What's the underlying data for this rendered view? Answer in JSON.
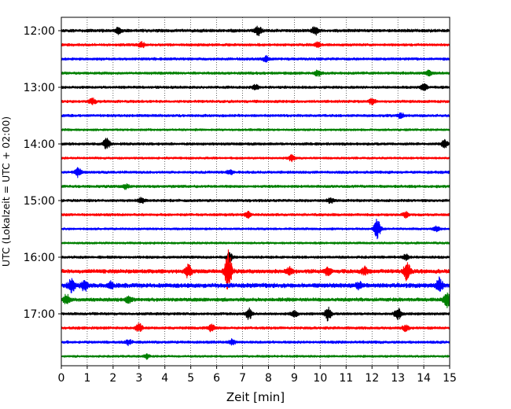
{
  "chart_data": {
    "type": "line",
    "xlabel": "Zeit  [min]",
    "ylabel": "UTC (Lokalzeit = UTC + 02:00)",
    "xlim": [
      0,
      15
    ],
    "x_ticks": [
      0,
      1,
      2,
      3,
      4,
      5,
      6,
      7,
      8,
      9,
      10,
      11,
      12,
      13,
      14,
      15
    ],
    "y_tick_labels": [
      "12:00",
      "13:00",
      "14:00",
      "15:00",
      "16:00",
      "17:00"
    ],
    "grid": "vertical dotted lines at each minute",
    "trace_interval_minutes": 15,
    "color_cycle": [
      "#000000",
      "#ff0000",
      "#0000ff",
      "#008000"
    ],
    "traces": [
      {
        "start": "12:00",
        "color": "#000000",
        "amplitude": 0.7,
        "events": [
          {
            "t": 7.6,
            "a": 2.6
          },
          {
            "t": 9.8,
            "a": 2.2
          },
          {
            "t": 2.2,
            "a": 1.6
          }
        ]
      },
      {
        "start": "12:15",
        "color": "#ff0000",
        "amplitude": 0.6,
        "events": [
          {
            "t": 3.1,
            "a": 1.5
          },
          {
            "t": 9.9,
            "a": 1.4
          }
        ]
      },
      {
        "start": "12:30",
        "color": "#0000ff",
        "amplitude": 0.6,
        "events": [
          {
            "t": 7.9,
            "a": 1.4
          }
        ]
      },
      {
        "start": "12:45",
        "color": "#008000",
        "amplitude": 0.6,
        "events": [
          {
            "t": 9.9,
            "a": 1.5
          },
          {
            "t": 14.2,
            "a": 1.3
          }
        ]
      },
      {
        "start": "13:00",
        "color": "#000000",
        "amplitude": 0.6,
        "events": [
          {
            "t": 14.0,
            "a": 1.6
          },
          {
            "t": 7.5,
            "a": 1.2
          }
        ]
      },
      {
        "start": "13:15",
        "color": "#ff0000",
        "amplitude": 0.6,
        "events": [
          {
            "t": 1.2,
            "a": 1.6
          },
          {
            "t": 12.0,
            "a": 1.5
          }
        ]
      },
      {
        "start": "13:30",
        "color": "#0000ff",
        "amplitude": 0.6,
        "events": [
          {
            "t": 13.1,
            "a": 1.4
          }
        ]
      },
      {
        "start": "13:45",
        "color": "#008000",
        "amplitude": 0.5,
        "events": []
      },
      {
        "start": "14:00",
        "color": "#000000",
        "amplitude": 0.6,
        "events": [
          {
            "t": 1.75,
            "a": 3.0
          },
          {
            "t": 14.8,
            "a": 2.0
          }
        ]
      },
      {
        "start": "14:15",
        "color": "#ff0000",
        "amplitude": 0.5,
        "events": [
          {
            "t": 8.9,
            "a": 1.6
          }
        ]
      },
      {
        "start": "14:30",
        "color": "#0000ff",
        "amplitude": 0.6,
        "events": [
          {
            "t": 0.65,
            "a": 2.4
          },
          {
            "t": 6.5,
            "a": 1.3
          }
        ]
      },
      {
        "start": "14:45",
        "color": "#008000",
        "amplitude": 0.6,
        "events": [
          {
            "t": 2.5,
            "a": 1.3
          }
        ]
      },
      {
        "start": "15:00",
        "color": "#000000",
        "amplitude": 0.6,
        "events": [
          {
            "t": 3.1,
            "a": 1.3
          },
          {
            "t": 10.4,
            "a": 1.3
          }
        ]
      },
      {
        "start": "15:15",
        "color": "#ff0000",
        "amplitude": 0.6,
        "events": [
          {
            "t": 7.2,
            "a": 1.6
          },
          {
            "t": 13.3,
            "a": 1.4
          }
        ]
      },
      {
        "start": "15:30",
        "color": "#0000ff",
        "amplitude": 0.5,
        "events": [
          {
            "t": 12.2,
            "a": 5.5
          },
          {
            "t": 14.5,
            "a": 1.3
          }
        ]
      },
      {
        "start": "15:45",
        "color": "#008000",
        "amplitude": 0.5,
        "events": []
      },
      {
        "start": "16:00",
        "color": "#000000",
        "amplitude": 0.6,
        "events": [
          {
            "t": 6.5,
            "a": 2.2
          },
          {
            "t": 13.3,
            "a": 1.5
          }
        ]
      },
      {
        "start": "16:15",
        "color": "#ff0000",
        "amplitude": 0.9,
        "events": [
          {
            "t": 4.9,
            "a": 3.5
          },
          {
            "t": 6.45,
            "a": 12.0
          },
          {
            "t": 13.35,
            "a": 5.0
          },
          {
            "t": 10.3,
            "a": 2.2
          },
          {
            "t": 8.8,
            "a": 2.0
          },
          {
            "t": 11.7,
            "a": 2.0
          }
        ]
      },
      {
        "start": "16:30",
        "color": "#0000ff",
        "amplitude": 1.0,
        "events": [
          {
            "t": 0.4,
            "a": 3.5
          },
          {
            "t": 0.9,
            "a": 3.0
          },
          {
            "t": 14.6,
            "a": 3.8
          },
          {
            "t": 1.9,
            "a": 1.8
          },
          {
            "t": 11.5,
            "a": 1.6
          }
        ]
      },
      {
        "start": "16:45",
        "color": "#008000",
        "amplitude": 0.8,
        "events": [
          {
            "t": 0.2,
            "a": 3.0
          },
          {
            "t": 14.9,
            "a": 4.0
          },
          {
            "t": 2.6,
            "a": 1.6
          }
        ]
      },
      {
        "start": "17:00",
        "color": "#000000",
        "amplitude": 0.6,
        "events": [
          {
            "t": 7.25,
            "a": 3.0
          },
          {
            "t": 10.3,
            "a": 3.5
          },
          {
            "t": 13.0,
            "a": 3.5
          },
          {
            "t": 9.0,
            "a": 1.5
          }
        ]
      },
      {
        "start": "17:15",
        "color": "#ff0000",
        "amplitude": 0.6,
        "events": [
          {
            "t": 3.0,
            "a": 2.4
          },
          {
            "t": 5.8,
            "a": 2.0
          },
          {
            "t": 13.3,
            "a": 1.5
          }
        ]
      },
      {
        "start": "17:30",
        "color": "#0000ff",
        "amplitude": 0.6,
        "events": [
          {
            "t": 2.6,
            "a": 1.4
          },
          {
            "t": 6.6,
            "a": 1.4
          }
        ]
      },
      {
        "start": "17:45",
        "color": "#008000",
        "amplitude": 0.5,
        "events": [
          {
            "t": 3.3,
            "a": 1.2
          }
        ]
      }
    ]
  }
}
